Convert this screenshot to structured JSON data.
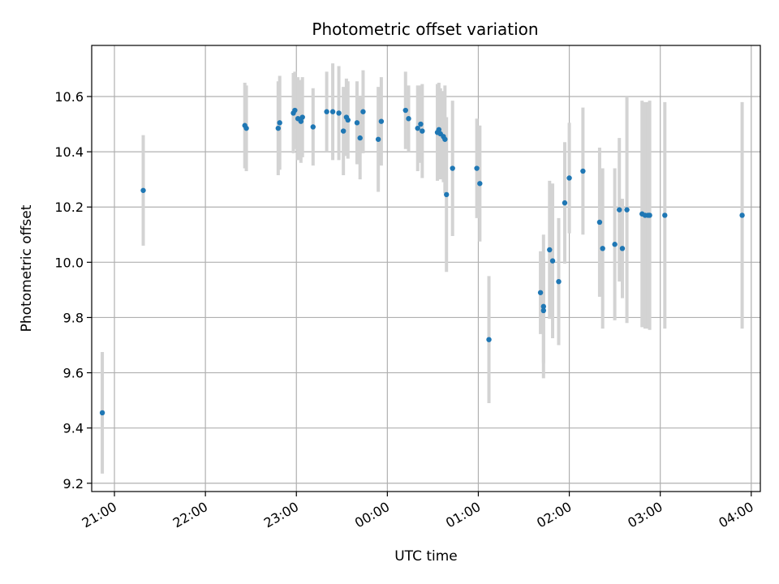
{
  "chart_data": {
    "type": "scatter",
    "title": "Photometric offset variation",
    "xlabel": "UTC time",
    "ylabel": "Photometric offset",
    "grid": true,
    "legend": "none",
    "colors": {
      "point": "#1f77b4",
      "errorbar": "#d3d3d3",
      "grid": "#b0b0b0",
      "axis": "#000000"
    },
    "xlim": [
      "20:45",
      "04:06"
    ],
    "ylim": [
      9.17,
      10.785
    ],
    "x_ticks": [
      "21:00",
      "22:00",
      "23:00",
      "00:00",
      "01:00",
      "02:00",
      "03:00",
      "04:00"
    ],
    "y_ticks": [
      9.2,
      9.4,
      9.6,
      9.8,
      10.0,
      10.2,
      10.4,
      10.6
    ],
    "x_tick_labels": [
      "21:00",
      "22:00",
      "23:00",
      "00:00",
      "01:00",
      "02:00",
      "03:00",
      "04:00"
    ],
    "y_tick_labels": [
      "9.2",
      "9.4",
      "9.6",
      "9.8",
      "10.0",
      "10.2",
      "10.4",
      "10.6"
    ],
    "series": [
      {
        "x": [
          "20:52",
          "21:19",
          "22:26",
          "22:27",
          "22:48",
          "22:49",
          "22:58",
          "22:59",
          "23:01",
          "23:03",
          "23:04",
          "23:11",
          "23:20",
          "23:24",
          "23:28",
          "23:31",
          "23:33",
          "23:34",
          "23:40",
          "23:42",
          "23:44",
          "23:54",
          "23:56",
          "00:12",
          "00:14",
          "00:20",
          "00:22",
          "00:23",
          "00:33",
          "00:34",
          "00:35",
          "00:37",
          "00:38",
          "00:39",
          "00:43",
          "00:59",
          "01:01",
          "01:07",
          "01:41",
          "01:43",
          "01:43",
          "01:47",
          "01:49",
          "01:53",
          "01:57",
          "02:00",
          "02:09",
          "02:20",
          "02:22",
          "02:30",
          "02:33",
          "02:35",
          "02:38",
          "02:48",
          "02:50",
          "02:52",
          "02:53",
          "03:03",
          "03:54"
        ],
        "y": [
          9.455,
          10.26,
          10.495,
          10.485,
          10.485,
          10.505,
          10.54,
          10.55,
          10.52,
          10.51,
          10.525,
          10.49,
          10.545,
          10.545,
          10.54,
          10.475,
          10.525,
          10.515,
          10.505,
          10.45,
          10.545,
          10.445,
          10.51,
          10.55,
          10.52,
          10.485,
          10.5,
          10.475,
          10.47,
          10.48,
          10.465,
          10.455,
          10.445,
          10.245,
          10.34,
          10.34,
          10.285,
          9.72,
          9.89,
          9.825,
          9.84,
          10.045,
          10.005,
          9.93,
          10.215,
          10.305,
          10.33,
          10.145,
          10.05,
          10.065,
          10.19,
          10.05,
          10.19,
          10.175,
          10.17,
          10.17,
          10.17,
          10.17,
          10.17
        ],
        "err": [
          0.22,
          0.2,
          0.155,
          0.155,
          0.17,
          0.17,
          0.145,
          0.14,
          0.15,
          0.15,
          0.145,
          0.14,
          0.145,
          0.175,
          0.17,
          0.16,
          0.14,
          0.14,
          0.15,
          0.15,
          0.15,
          0.19,
          0.16,
          0.14,
          0.12,
          0.155,
          0.14,
          0.17,
          0.175,
          0.17,
          0.165,
          0.165,
          0.195,
          0.28,
          0.245,
          0.18,
          0.21,
          0.23,
          0.15,
          0.19,
          0.26,
          0.25,
          0.28,
          0.23,
          0.22,
          0.2,
          0.23,
          0.27,
          0.29,
          0.275,
          0.26,
          0.18,
          0.41,
          0.41,
          0.41,
          0.41,
          0.415,
          0.41,
          0.41
        ]
      }
    ]
  }
}
